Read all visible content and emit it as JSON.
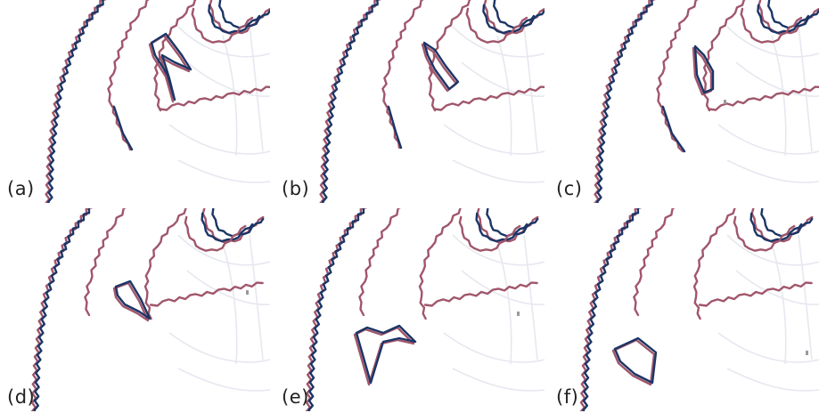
{
  "figure": {
    "panels": [
      {
        "label": "(a)"
      },
      {
        "label": "(b)"
      },
      {
        "label": "(c)"
      },
      {
        "label": "(d)"
      },
      {
        "label": "(e)"
      },
      {
        "label": "(f)"
      }
    ]
  },
  "colors": {
    "contour_red": "#a0566b",
    "contour_blue": "#1b3566",
    "background_faint": "#e6e8f0",
    "label_text": "#222222"
  }
}
